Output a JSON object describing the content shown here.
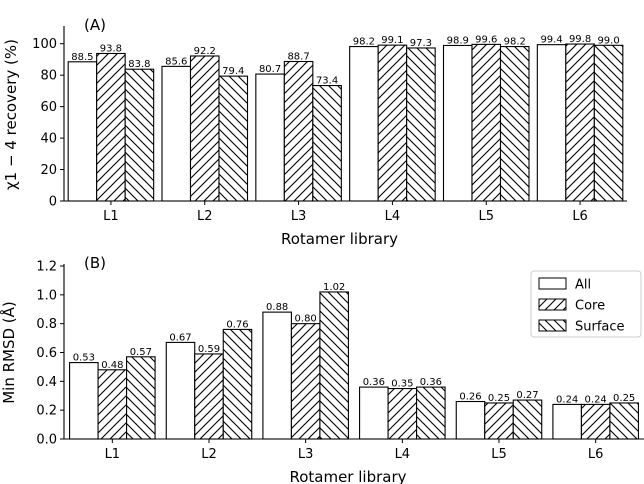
{
  "chart_data": [
    {
      "type": "bar",
      "panel_label": "(A)",
      "categories": [
        "L1",
        "L2",
        "L3",
        "L4",
        "L5",
        "L6"
      ],
      "series": [
        {
          "name": "All",
          "values": [
            88.5,
            85.6,
            80.7,
            98.2,
            98.9,
            99.4
          ]
        },
        {
          "name": "Core",
          "values": [
            93.8,
            92.2,
            88.7,
            99.1,
            99.6,
            99.8
          ]
        },
        {
          "name": "Surface",
          "values": [
            83.8,
            79.4,
            73.4,
            97.3,
            98.2,
            99.0
          ]
        }
      ],
      "data_labels": [
        [
          "88.5",
          "85.6",
          "80.7",
          "98.2",
          "98.9",
          "99.4"
        ],
        [
          "93.8",
          "92.2",
          "88.7",
          "99.1",
          "99.6",
          "99.8"
        ],
        [
          "83.8",
          "79.4",
          "73.4",
          "97.3",
          "98.2",
          "99.0"
        ]
      ],
      "xlabel": "Rotamer library",
      "ylabel": "χ1 − 4 recovery (%)",
      "ylim": [
        0,
        110
      ],
      "yticks": [
        0,
        20,
        40,
        60,
        80,
        100
      ],
      "ytick_labels": [
        "0",
        "20",
        "40",
        "60",
        "80",
        "100"
      ],
      "grid": false
    },
    {
      "type": "bar",
      "panel_label": "(B)",
      "categories": [
        "L1",
        "L2",
        "L3",
        "L4",
        "L5",
        "L6"
      ],
      "series": [
        {
          "name": "All",
          "values": [
            0.53,
            0.67,
            0.88,
            0.36,
            0.26,
            0.24
          ]
        },
        {
          "name": "Core",
          "values": [
            0.48,
            0.59,
            0.8,
            0.35,
            0.25,
            0.24
          ]
        },
        {
          "name": "Surface",
          "values": [
            0.57,
            0.76,
            1.02,
            0.36,
            0.27,
            0.25
          ]
        }
      ],
      "data_labels": [
        [
          "0.53",
          "0.67",
          "0.88",
          "0.36",
          "0.26",
          "0.24"
        ],
        [
          "0.48",
          "0.59",
          "0.80",
          "0.35",
          "0.25",
          "0.24"
        ],
        [
          "0.57",
          "0.76",
          "1.02",
          "0.36",
          "0.27",
          "0.25"
        ]
      ],
      "xlabel": "Rotamer library",
      "ylabel": "Min RMSD (Å)",
      "ylim": [
        0,
        1.2
      ],
      "yticks": [
        0.0,
        0.2,
        0.4,
        0.6,
        0.8,
        1.0,
        1.2
      ],
      "ytick_labels": [
        "0.0",
        "0.2",
        "0.4",
        "0.6",
        "0.8",
        "1.0",
        "1.2"
      ],
      "grid": false,
      "legend": {
        "placement": "top-right",
        "entries": [
          "All",
          "Core",
          "Surface"
        ]
      }
    }
  ]
}
